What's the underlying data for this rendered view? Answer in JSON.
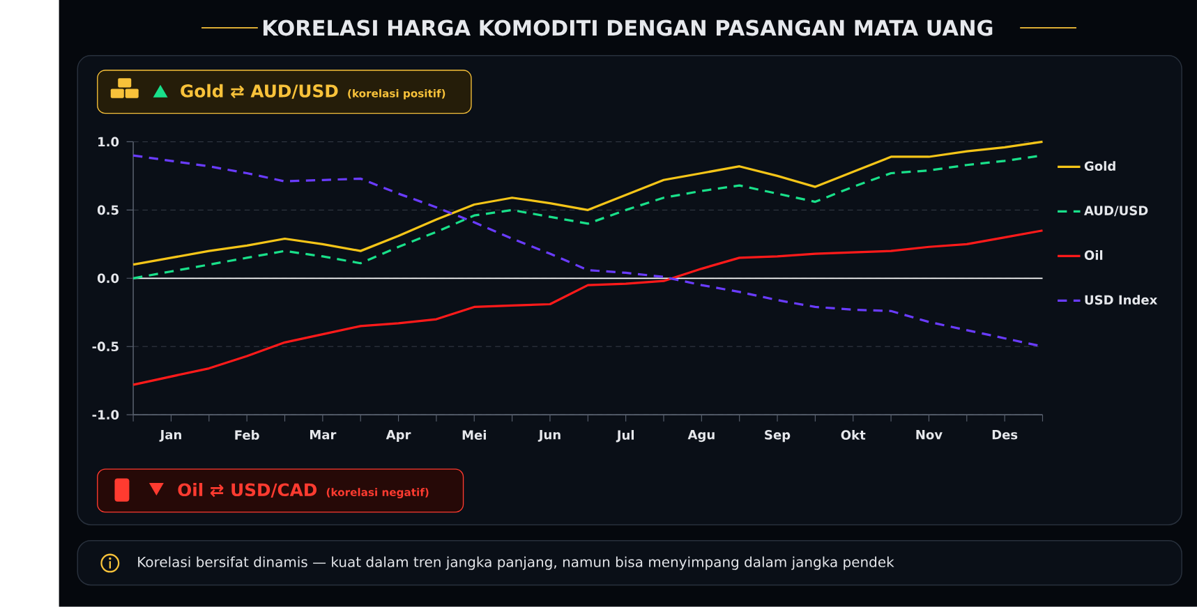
{
  "chart_data": {
    "type": "line",
    "title": "KORELASI HARGA KOMODITI DENGAN PASANGAN MATA UANG",
    "annotations": [
      "Gold ⇄ AUD/USD",
      "(korelasi positif)",
      "Oil ⇄ USD/CAD",
      "(korelasi negatif)",
      "Korelasi bersifat dinamis — kuat dalam tren jangka panjang, namun bisa menyimpang dalam jangka pendek"
    ],
    "categories": [
      null,
      "Jan",
      null,
      "Feb",
      null,
      "Mar",
      null,
      "Apr",
      null,
      "Mei",
      null,
      "Jun",
      null,
      "Jul",
      null,
      "Agu",
      null,
      "Sep",
      null,
      "Okt",
      null,
      "Nov",
      null,
      "Des",
      null
    ],
    "ylim": [
      -1,
      1
    ],
    "yticks": [
      {
        "value": -1,
        "label": "-1.0"
      },
      {
        "value": -0.5,
        "label": "-0.5"
      },
      {
        "value": 0,
        "label": "0.0"
      },
      {
        "value": 0.5,
        "label": "0.5"
      },
      {
        "value": 1,
        "label": "1.0"
      }
    ],
    "grid": "y",
    "legend": "right",
    "marker": "none",
    "ref_lines": [
      {
        "axis": "y",
        "value": 0,
        "color": "#ffffff"
      }
    ],
    "series": [
      {
        "name": "Gold",
        "color": "#f5c518",
        "line_style": "solid",
        "values": [
          0.1,
          0.15,
          0.2,
          0.24,
          0.29,
          0.25,
          0.2,
          0.31,
          0.43,
          0.54,
          0.59,
          0.55,
          0.5,
          0.61,
          0.72,
          0.77,
          0.82,
          0.75,
          0.67,
          0.78,
          0.89,
          0.89,
          0.93,
          0.96,
          1.0
        ]
      },
      {
        "name": "AUD/USD",
        "color": "#19e08a",
        "line_style": "dashed",
        "values": [
          0,
          0.05,
          0.1,
          0.15,
          0.2,
          0.16,
          0.11,
          0.23,
          0.34,
          0.46,
          0.5,
          0.45,
          0.4,
          0.5,
          0.59,
          0.64,
          0.68,
          0.62,
          0.56,
          0.67,
          0.77,
          0.79,
          0.83,
          0.86,
          0.9
        ]
      },
      {
        "name": "Oil",
        "color": "#ff1a1a",
        "line_style": "solid",
        "values": [
          -0.78,
          -0.72,
          -0.66,
          -0.57,
          -0.47,
          -0.41,
          -0.35,
          -0.33,
          -0.3,
          -0.21,
          -0.2,
          -0.19,
          -0.05,
          -0.04,
          -0.02,
          0.07,
          0.15,
          0.16,
          0.18,
          0.19,
          0.2,
          0.23,
          0.25,
          0.3,
          0.35
        ]
      },
      {
        "name": "USD Index",
        "color": "#6a3cff",
        "line_style": "dashed",
        "values": [
          0.9,
          0.86,
          0.82,
          0.77,
          0.71,
          0.72,
          0.73,
          0.62,
          0.52,
          0.41,
          0.29,
          0.18,
          0.06,
          0.04,
          0.01,
          -0.05,
          -0.1,
          -0.16,
          -0.21,
          -0.23,
          -0.24,
          -0.32,
          -0.38,
          -0.44,
          -0.5
        ]
      }
    ]
  }
}
